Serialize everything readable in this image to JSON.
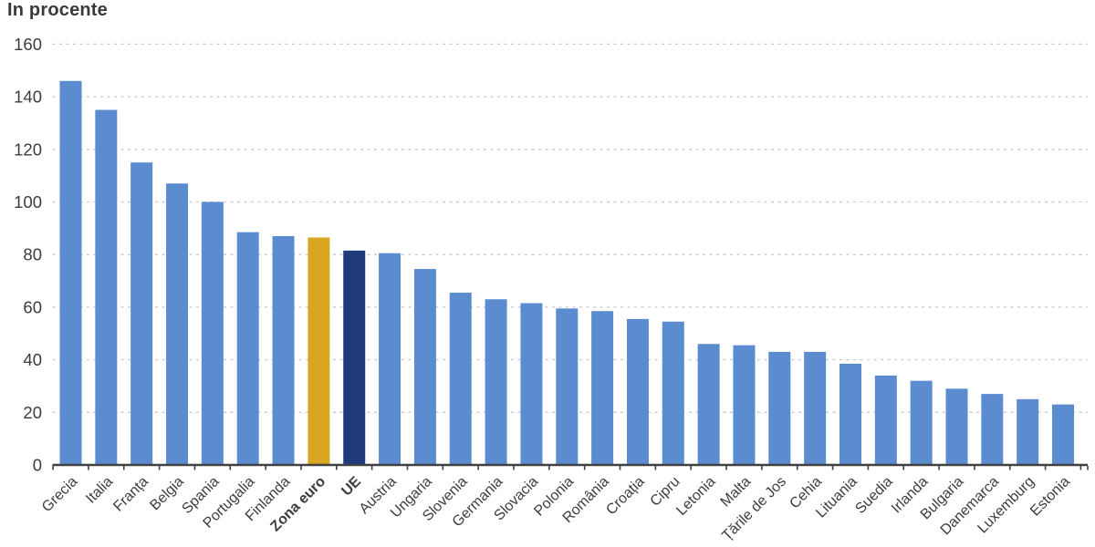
{
  "chart_data": {
    "type": "bar",
    "title": "In procente",
    "xlabel": "",
    "ylabel": "",
    "ylim": [
      0,
      160
    ],
    "ytick_step": 20,
    "ytick_labels": [
      "0",
      "20",
      "40",
      "60",
      "80",
      "100",
      "120",
      "140",
      "160"
    ],
    "grid": "horizontal-dashed",
    "legend_position": "none",
    "categories": [
      "Grecia",
      "Italia",
      "Franța",
      "Belgia",
      "Spania",
      "Portugalia",
      "Finlanda",
      "Zona euro",
      "UE",
      "Austria",
      "Ungaria",
      "Slovenia",
      "Germania",
      "Slovacia",
      "Polonia",
      "România",
      "Croația",
      "Cipru",
      "Letonia",
      "Malta",
      "Țările de Jos",
      "Cehia",
      "Lituania",
      "Suedia",
      "Irlanda",
      "Bulgaria",
      "Danemarca",
      "Luxemburg",
      "Estonia"
    ],
    "values": [
      146,
      135,
      115,
      107,
      100,
      88.5,
      87,
      86.5,
      81.5,
      80.5,
      74.5,
      65.5,
      63,
      61.5,
      59.5,
      58.5,
      55.5,
      54.5,
      46,
      45.5,
      43,
      43,
      38.5,
      34,
      32,
      29,
      27,
      25,
      23
    ],
    "bar_colors": {
      "default": "#5B8CD0",
      "Zona euro": "#D9A621",
      "UE": "#1F3B7C"
    },
    "bold_labels": [
      "Zona euro",
      "UE"
    ],
    "axis_color": "#404040",
    "gridline_color": "#c9c9c9",
    "text_color": "#3c3c3c"
  }
}
